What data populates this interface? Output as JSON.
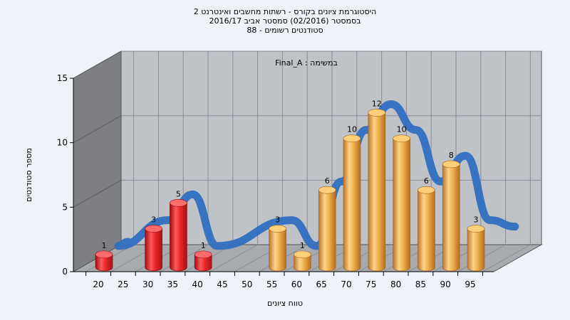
{
  "page": {
    "title_lines": [
      "היסטוגרמת ציונים בקורס - רשתות מחשבים ואינטרנט 2",
      "בסמסטר (02/2016) סמסטר אביב 2016/17",
      "סטודנטים רשומים - 88"
    ]
  },
  "chart_data": {
    "type": "bar",
    "title": "היסטוגרמת ציונים בקורס - רשתות מחשבים ואינטרנט 2",
    "subtitle": "בסמסטר (02/2016) סמסטר אביב 2016/17 | סטודנטים רשומים - 88",
    "annotation": "Final_A : במשימה",
    "xlabel": "טווח ציונים",
    "ylabel": "מספר סטודנטים",
    "ylim": [
      0,
      15
    ],
    "yticks": [
      0,
      5,
      10,
      15
    ],
    "x_ticks": [
      20,
      25,
      30,
      35,
      40,
      45,
      50,
      55,
      60,
      65,
      70,
      75,
      80,
      85,
      90,
      95
    ],
    "grid": true,
    "bars": [
      {
        "x": 20,
        "value": 1,
        "color": "red"
      },
      {
        "x": 30,
        "value": 3,
        "color": "red"
      },
      {
        "x": 35,
        "value": 5,
        "color": "red"
      },
      {
        "x": 40,
        "value": 1,
        "color": "red"
      },
      {
        "x": 55,
        "value": 3,
        "color": "orange"
      },
      {
        "x": 60,
        "value": 1,
        "color": "orange"
      },
      {
        "x": 65,
        "value": 6,
        "color": "orange"
      },
      {
        "x": 70,
        "value": 10,
        "color": "orange"
      },
      {
        "x": 75,
        "value": 12,
        "color": "orange"
      },
      {
        "x": 80,
        "value": 10,
        "color": "orange"
      },
      {
        "x": 85,
        "value": 6,
        "color": "orange"
      },
      {
        "x": 90,
        "value": 8,
        "color": "orange"
      },
      {
        "x": 95,
        "value": 3,
        "color": "orange"
      }
    ],
    "colors": {
      "failing_bar": "#e8282a",
      "passing_bar": "#f0b04a",
      "trend_ribbon": "#2f6fc0",
      "wall": "#b8bcc2",
      "floor": "#a9adb3"
    }
  }
}
